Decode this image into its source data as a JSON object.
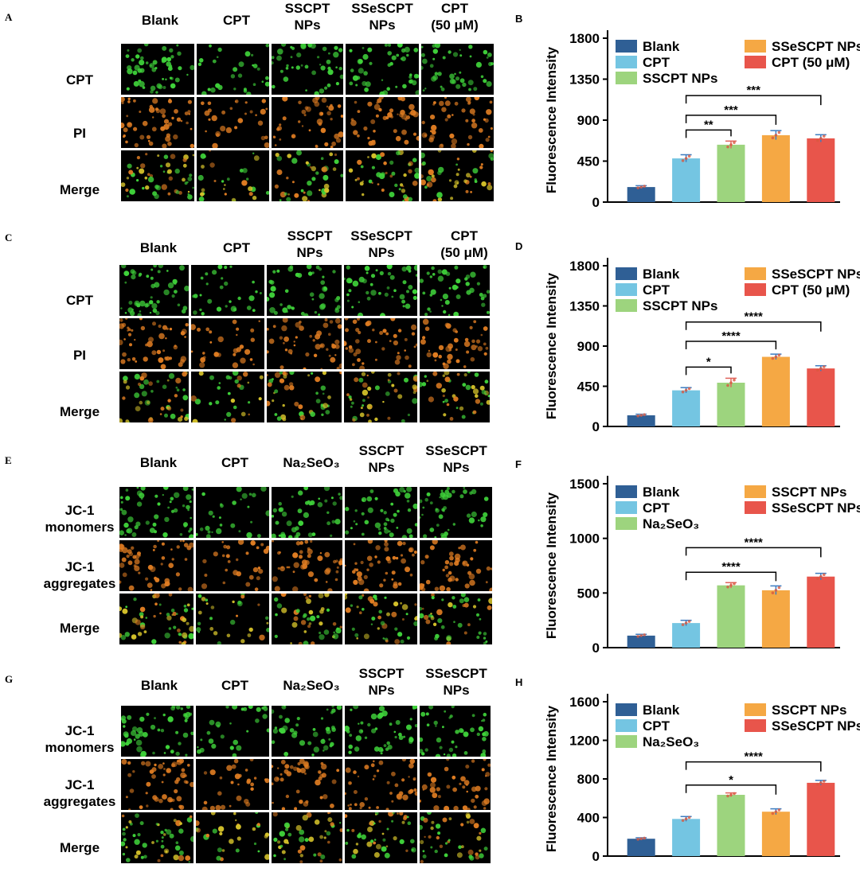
{
  "panels": [
    {
      "letter": "A",
      "columns": [
        "Blank",
        "CPT",
        "SSCPT\nNPs",
        "SSeSCPT\nNPs",
        "CPT\n(50 μM)"
      ],
      "rows": [
        "CPT",
        "PI",
        "Merge"
      ],
      "row_stains": [
        "green",
        "orange",
        "merge"
      ]
    },
    {
      "letter": "C",
      "columns": [
        "Blank",
        "CPT",
        "SSCPT\nNPs",
        "SSeSCPT\nNPs",
        "CPT\n(50 μM)"
      ],
      "rows": [
        "CPT",
        "PI",
        "Merge"
      ],
      "row_stains": [
        "green",
        "orange",
        "merge"
      ]
    },
    {
      "letter": "E",
      "columns": [
        "Blank",
        "CPT",
        "Na₂SeO₃",
        "SSCPT\nNPs",
        "SSeSCPT\nNPs"
      ],
      "rows": [
        "JC-1\nmonomers",
        "JC-1\naggregates",
        "Merge"
      ],
      "row_stains": [
        "green",
        "orange",
        "merge"
      ]
    },
    {
      "letter": "G",
      "columns": [
        "Blank",
        "CPT",
        "Na₂SeO₃",
        "SSCPT\nNPs",
        "SSeSCPT\nNPs"
      ],
      "rows": [
        "JC-1\nmonomers",
        "JC-1\naggregates",
        "Merge"
      ],
      "row_stains": [
        "green",
        "orange",
        "merge"
      ]
    }
  ],
  "colors": {
    "blank": "#2f5f95",
    "cpt": "#74c5e2",
    "third": "#9dd47e",
    "fourth": "#f5a844",
    "fifth": "#e8554b",
    "green_cells": "#3fd23a",
    "orange_cells": "#e07d22"
  },
  "chart_data": [
    {
      "letter": "B",
      "type": "bar",
      "ylabel": "Fluorescence Intensity",
      "ylim": [
        0,
        1800
      ],
      "yticks": [
        0,
        450,
        900,
        1350,
        1800
      ],
      "categories": [
        "Blank",
        "CPT",
        "SSCPT NPs",
        "SSeSCPT NPs",
        "CPT (50 μM)"
      ],
      "values": [
        165,
        480,
        630,
        735,
        700
      ],
      "errors": [
        15,
        40,
        40,
        50,
        40
      ],
      "legend": [
        "Blank",
        "SSeSCPT NPs",
        "CPT",
        "CPT (50 μM)",
        "SSCPT NPs"
      ],
      "legend_order": [
        0,
        3,
        1,
        4,
        2
      ],
      "significance": [
        {
          "from": 1,
          "to": 2,
          "label": "**"
        },
        {
          "from": 1,
          "to": 3,
          "label": "***"
        },
        {
          "from": 1,
          "to": 4,
          "label": "***"
        }
      ]
    },
    {
      "letter": "D",
      "type": "bar",
      "ylabel": "Fluorescence Intensity",
      "ylim": [
        0,
        1800
      ],
      "yticks": [
        0,
        450,
        900,
        1350,
        1800
      ],
      "categories": [
        "Blank",
        "CPT",
        "SSCPT NPs",
        "SSeSCPT NPs",
        "CPT (50 μM)"
      ],
      "values": [
        125,
        405,
        490,
        780,
        650
      ],
      "errors": [
        12,
        30,
        50,
        30,
        30
      ],
      "legend": [
        "Blank",
        "SSeSCPT NPs",
        "CPT",
        "CPT (50 μM)",
        "SSCPT NPs"
      ],
      "legend_order": [
        0,
        3,
        1,
        4,
        2
      ],
      "significance": [
        {
          "from": 1,
          "to": 2,
          "label": "*"
        },
        {
          "from": 1,
          "to": 3,
          "label": "****"
        },
        {
          "from": 1,
          "to": 4,
          "label": "****"
        }
      ]
    },
    {
      "letter": "F",
      "type": "bar",
      "ylabel": "Fluorescence Intensity",
      "ylim": [
        0,
        1500
      ],
      "yticks": [
        0,
        500,
        1000,
        1500
      ],
      "categories": [
        "Blank",
        "CPT",
        "Na₂SeO₃",
        "SSCPT NPs",
        "SSeSCPT NPs"
      ],
      "values": [
        110,
        225,
        570,
        525,
        650
      ],
      "errors": [
        12,
        25,
        25,
        40,
        30
      ],
      "legend": [
        "Blank",
        "SSCPT NPs",
        "CPT",
        "SSeSCPT NPs",
        "Na₂SeO₃"
      ],
      "legend_order": [
        0,
        3,
        1,
        4,
        2
      ],
      "significance": [
        {
          "from": 1,
          "to": 3,
          "label": "****"
        },
        {
          "from": 1,
          "to": 4,
          "label": "****"
        }
      ]
    },
    {
      "letter": "H",
      "type": "bar",
      "ylabel": "Fluorescence Intensity",
      "ylim": [
        0,
        1600
      ],
      "yticks": [
        0,
        400,
        800,
        1200,
        1600
      ],
      "categories": [
        "Blank",
        "CPT",
        "Na₂SeO₃",
        "SSCPT NPs",
        "SSeSCPT NPs"
      ],
      "values": [
        180,
        385,
        635,
        460,
        760
      ],
      "errors": [
        10,
        25,
        20,
        30,
        25
      ],
      "legend": [
        "Blank",
        "SSCPT NPs",
        "CPT",
        "SSeSCPT NPs",
        "Na₂SeO₃"
      ],
      "legend_order": [
        0,
        3,
        1,
        4,
        2
      ],
      "significance": [
        {
          "from": 1,
          "to": 3,
          "label": "*"
        },
        {
          "from": 1,
          "to": 4,
          "label": "****"
        }
      ]
    }
  ]
}
